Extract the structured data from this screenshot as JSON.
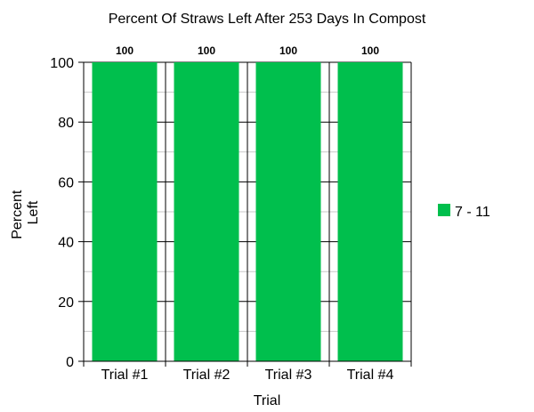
{
  "chart_data": {
    "type": "bar",
    "title": "Percent Of Straws Left After 253 Days In Compost",
    "xlabel": "Trial",
    "ylabel_lines": [
      "Percent",
      "Left"
    ],
    "categories": [
      "Trial #1",
      "Trial #2",
      "Trial #3",
      "Trial #4"
    ],
    "series": [
      {
        "name": "7 - 11",
        "color": "#00BF4D",
        "values": [
          100,
          100,
          100,
          100
        ]
      }
    ],
    "data_labels": [
      "100",
      "100",
      "100",
      "100"
    ],
    "ylim": [
      0,
      100
    ],
    "yticks": [
      0,
      20,
      40,
      60,
      80,
      100
    ],
    "ytick_labels": [
      "0",
      "20",
      "40",
      "60",
      "80",
      "100"
    ],
    "minor_grid_step": 10,
    "grid": true,
    "legend_position": "right"
  }
}
